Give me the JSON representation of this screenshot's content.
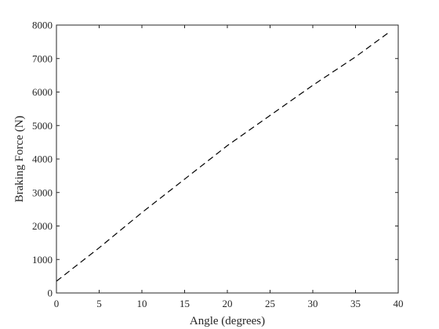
{
  "chart_data": {
    "type": "line",
    "title": "",
    "xlabel": "Angle (degrees)",
    "ylabel": "Braking Force (N)",
    "xlim": [
      0,
      40
    ],
    "ylim": [
      0,
      8000
    ],
    "x_ticks": [
      0,
      5,
      10,
      15,
      20,
      25,
      30,
      35,
      40
    ],
    "y_ticks": [
      0,
      1000,
      2000,
      3000,
      4000,
      5000,
      6000,
      7000,
      8000
    ],
    "grid": false,
    "box": true,
    "series": [
      {
        "line_style": "dashed",
        "color": "#000000",
        "x": [
          0,
          5,
          10,
          15,
          20,
          25,
          30,
          35,
          39
        ],
        "y": [
          350,
          1350,
          2400,
          3400,
          4400,
          5300,
          6200,
          7050,
          7800
        ]
      }
    ]
  }
}
